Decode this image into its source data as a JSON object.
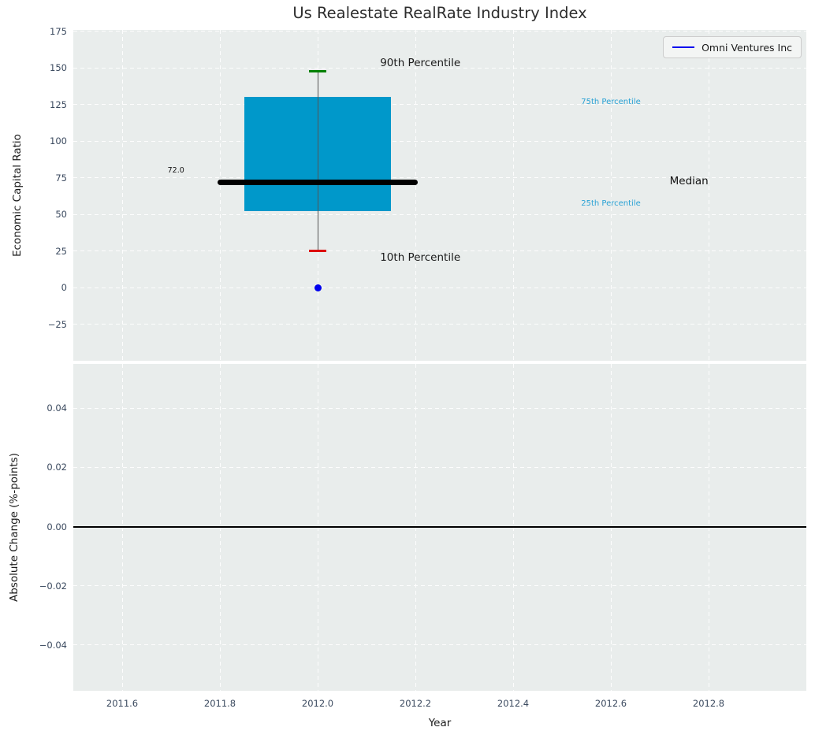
{
  "chart_data": {
    "type": "boxplot",
    "title": "Us Realestate RealRate Industry Index",
    "legend": {
      "label": "Omni Ventures Inc",
      "position": "upper right",
      "line_color": "#0000ee"
    },
    "x_axis": {
      "label": "Year",
      "lim": [
        2011.5,
        2013.0
      ],
      "ticks": [
        {
          "v": 2011.6,
          "label": "2011.6"
        },
        {
          "v": 2011.8,
          "label": "2011.8"
        },
        {
          "v": 2012.0,
          "label": "2012.0"
        },
        {
          "v": 2012.2,
          "label": "2012.2"
        },
        {
          "v": 2012.4,
          "label": "2012.4"
        },
        {
          "v": 2012.6,
          "label": "2012.6"
        },
        {
          "v": 2012.8,
          "label": "2012.8"
        }
      ]
    },
    "top_panel": {
      "ylabel": "Economic Capital Ratio",
      "ylim": [
        -50,
        176
      ],
      "yticks": [
        {
          "v": 175,
          "label": "175"
        },
        {
          "v": 150,
          "label": "150"
        },
        {
          "v": 125,
          "label": "125"
        },
        {
          "v": 100,
          "label": "100"
        },
        {
          "v": 75,
          "label": "75"
        },
        {
          "v": 50,
          "label": "50"
        },
        {
          "v": 25,
          "label": "25"
        },
        {
          "v": 0,
          "label": "0"
        },
        {
          "v": -25,
          "label": "−25"
        }
      ],
      "boxplot": {
        "x": 2012.0,
        "p90": 147.5,
        "p75": 130,
        "median": 72.0,
        "p25": 52.5,
        "p10": 25,
        "box_halfwidth": 0.15,
        "median_halfwidth": 0.2,
        "cap_halfwidth": 0.017
      },
      "company_point": {
        "x": 2012.0,
        "y": 0
      },
      "annotations": [
        {
          "text": "90th Percentile",
          "x": 2012.21,
          "y": 152.3,
          "color": "#1a1a1a",
          "size": 13.5
        },
        {
          "text": "10th Percentile",
          "x": 2012.21,
          "y": 19.4,
          "color": "#1a1a1a",
          "size": 13.5
        },
        {
          "text": "72.0",
          "x": 2011.71,
          "y": 79.0,
          "color": "#111111",
          "size": 9.5
        },
        {
          "text": "Median",
          "x": 2012.76,
          "y": 72.0,
          "color": "#111111",
          "size": 13.5
        },
        {
          "text": "75th Percentile",
          "x": 2012.6,
          "y": 126.0,
          "color": "#2aa2d5",
          "size": 10
        },
        {
          "text": "25th Percentile",
          "x": 2012.6,
          "y": 56.5,
          "color": "#2aa2d5",
          "size": 10
        }
      ]
    },
    "bottom_panel": {
      "ylabel": "Absolute Change (%-points)",
      "ylim": [
        -0.0555,
        0.055
      ],
      "yticks": [
        {
          "v": 0.04,
          "label": "0.04"
        },
        {
          "v": 0.02,
          "label": "0.02"
        },
        {
          "v": 0.0,
          "label": "0.00"
        },
        {
          "v": -0.02,
          "label": "−0.02"
        },
        {
          "v": -0.04,
          "label": "−0.04"
        }
      ],
      "zero_line_y": 0.0
    },
    "colors": {
      "axes_bg": "#e9edec",
      "grid": "#ffffff",
      "box_fill": "#0098ca",
      "median_line": "#000000",
      "whisker_line": "#555555",
      "cap_90": "#008000",
      "cap_10": "#dd0000",
      "company_point": "#0000ee",
      "zero_line": "#000000",
      "tick_label": "#3b4a5f"
    }
  }
}
